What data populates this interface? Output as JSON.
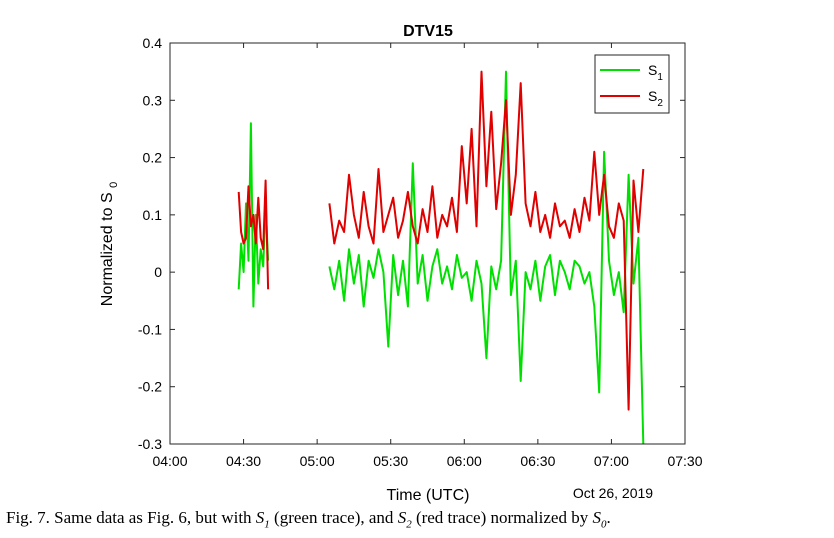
{
  "chart_data": {
    "type": "line",
    "title": "DTV15",
    "xlabel": "Time (UTC)",
    "ylabel": "Normalized to S0",
    "date_label": "Oct 26, 2019",
    "x_ticks": [
      "04:00",
      "04:30",
      "05:00",
      "05:30",
      "06:00",
      "06:30",
      "07:00",
      "07:30"
    ],
    "y_ticks": [
      "0.4",
      "0.3",
      "0.2",
      "0.1",
      "0",
      "-0.1",
      "-0.2",
      "-0.3"
    ],
    "ylim": [
      -0.3,
      0.4
    ],
    "xlim": [
      "04:00",
      "07:30"
    ],
    "legend_position": "top-right",
    "series": [
      {
        "name": "S1",
        "color": "#00e000",
        "segments": [
          {
            "x": [
              "04:28",
              "04:29",
              "04:30",
              "04:31",
              "04:32",
              "04:33",
              "04:34",
              "04:35",
              "04:36",
              "04:37",
              "04:38",
              "04:39",
              "04:40"
            ],
            "y": [
              -0.03,
              0.05,
              0.0,
              0.12,
              0.02,
              0.26,
              -0.06,
              0.1,
              -0.02,
              0.04,
              0.01,
              0.12,
              0.02
            ]
          },
          {
            "x": [
              "05:05",
              "05:07",
              "05:09",
              "05:11",
              "05:13",
              "05:15",
              "05:17",
              "05:19",
              "05:21",
              "05:23",
              "05:25",
              "05:27",
              "05:29",
              "05:31",
              "05:33",
              "05:35",
              "05:37",
              "05:39",
              "05:41",
              "05:43",
              "05:45",
              "05:47",
              "05:49",
              "05:51",
              "05:53",
              "05:55",
              "05:57",
              "05:59",
              "06:01",
              "06:03",
              "06:05",
              "06:07",
              "06:09",
              "06:11",
              "06:13",
              "06:15",
              "06:17",
              "06:19",
              "06:21",
              "06:23",
              "06:25",
              "06:27",
              "06:29",
              "06:31",
              "06:33",
              "06:35",
              "06:37",
              "06:39",
              "06:41",
              "06:43",
              "06:45",
              "06:47",
              "06:49",
              "06:51",
              "06:53",
              "06:55",
              "06:57",
              "06:59",
              "07:01",
              "07:03",
              "07:05",
              "07:07",
              "07:09",
              "07:11",
              "07:13"
            ],
            "y": [
              0.01,
              -0.03,
              0.02,
              -0.05,
              0.04,
              -0.02,
              0.03,
              -0.06,
              0.02,
              -0.01,
              0.04,
              0.0,
              -0.13,
              0.03,
              -0.04,
              0.02,
              -0.06,
              0.19,
              -0.02,
              0.03,
              -0.05,
              0.01,
              0.04,
              -0.02,
              0.01,
              -0.03,
              0.03,
              -0.01,
              0.0,
              -0.05,
              0.02,
              -0.02,
              -0.15,
              0.01,
              -0.03,
              0.02,
              0.35,
              -0.04,
              0.02,
              -0.19,
              0.0,
              -0.03,
              0.02,
              -0.05,
              0.01,
              0.03,
              -0.04,
              0.02,
              0.0,
              -0.03,
              0.02,
              0.01,
              -0.02,
              0.0,
              -0.06,
              -0.21,
              0.21,
              0.02,
              -0.04,
              0.0,
              -0.07,
              0.17,
              -0.02,
              0.06,
              -0.3
            ]
          }
        ]
      },
      {
        "name": "S2",
        "color": "#e00000",
        "segments": [
          {
            "x": [
              "04:28",
              "04:29",
              "04:30",
              "04:31",
              "04:32",
              "04:33",
              "04:34",
              "04:35",
              "04:36",
              "04:37",
              "04:38",
              "04:39",
              "04:40"
            ],
            "y": [
              0.14,
              0.07,
              0.05,
              0.06,
              0.15,
              0.08,
              0.1,
              0.05,
              0.13,
              0.06,
              0.04,
              0.16,
              -0.03
            ]
          },
          {
            "x": [
              "05:05",
              "05:07",
              "05:09",
              "05:11",
              "05:13",
              "05:15",
              "05:17",
              "05:19",
              "05:21",
              "05:23",
              "05:25",
              "05:27",
              "05:29",
              "05:31",
              "05:33",
              "05:35",
              "05:37",
              "05:39",
              "05:41",
              "05:43",
              "05:45",
              "05:47",
              "05:49",
              "05:51",
              "05:53",
              "05:55",
              "05:57",
              "05:59",
              "06:01",
              "06:03",
              "06:05",
              "06:07",
              "06:09",
              "06:11",
              "06:13",
              "06:15",
              "06:17",
              "06:19",
              "06:21",
              "06:23",
              "06:25",
              "06:27",
              "06:29",
              "06:31",
              "06:33",
              "06:35",
              "06:37",
              "06:39",
              "06:41",
              "06:43",
              "06:45",
              "06:47",
              "06:49",
              "06:51",
              "06:53",
              "06:55",
              "06:57",
              "06:59",
              "07:01",
              "07:03",
              "07:05",
              "07:07",
              "07:09",
              "07:11",
              "07:13"
            ],
            "y": [
              0.12,
              0.05,
              0.09,
              0.07,
              0.17,
              0.1,
              0.06,
              0.14,
              0.08,
              0.05,
              0.18,
              0.07,
              0.1,
              0.13,
              0.06,
              0.09,
              0.14,
              0.08,
              0.05,
              0.11,
              0.07,
              0.15,
              0.06,
              0.1,
              0.08,
              0.13,
              0.07,
              0.22,
              0.12,
              0.25,
              0.08,
              0.35,
              0.15,
              0.28,
              0.11,
              0.19,
              0.3,
              0.1,
              0.17,
              0.33,
              0.12,
              0.08,
              0.14,
              0.07,
              0.1,
              0.06,
              0.12,
              0.08,
              0.09,
              0.06,
              0.11,
              0.07,
              0.13,
              0.09,
              0.21,
              0.1,
              0.17,
              0.08,
              0.06,
              0.12,
              0.09,
              -0.24,
              0.16,
              0.07,
              0.18
            ]
          }
        ]
      }
    ]
  },
  "caption": {
    "prefix": "Fig. 7. Same data as Fig. 6, but with ",
    "s1": "S",
    "s1_sub": "1",
    "mid1": " (green trace), and ",
    "s2": "S",
    "s2_sub": "2",
    "mid2": " (red trace) normalized by ",
    "s0": "S",
    "s0_sub": "0",
    "suffix": "."
  }
}
